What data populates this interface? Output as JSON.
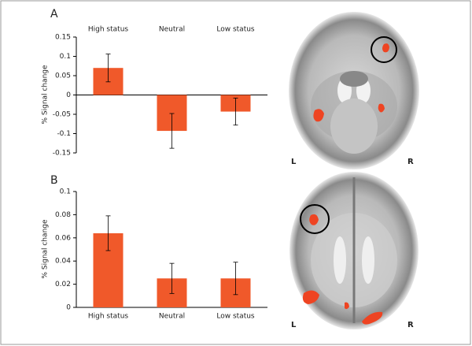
{
  "chart_data": [
    {
      "type": "bar",
      "panel_label": "A",
      "y_label": "% Signal change",
      "categories": [
        "High status",
        "Neutral",
        "Low status"
      ],
      "values": [
        0.07,
        -0.093,
        -0.043
      ],
      "errors": [
        0.036,
        0.045,
        0.035
      ],
      "color": "#f0592a",
      "ylim": [
        -0.15,
        0.15
      ],
      "yticks": [
        0.15,
        0.1,
        0.05,
        0,
        -0.05,
        -0.1,
        -0.15
      ],
      "image_labels": [
        "L",
        "R"
      ]
    },
    {
      "type": "bar",
      "panel_label": "B",
      "y_label": "% Signal change",
      "categories": [
        "High status",
        "Neutral",
        "Low status"
      ],
      "values": [
        0.064,
        0.025,
        0.025
      ],
      "errors": [
        0.015,
        0.013,
        0.014
      ],
      "color": "#f0592a",
      "ylim": [
        0,
        0.1
      ],
      "yticks": [
        0,
        0.02,
        0.04,
        0.06,
        0.08,
        0.1
      ],
      "image_labels": [
        "L",
        "R"
      ]
    }
  ]
}
